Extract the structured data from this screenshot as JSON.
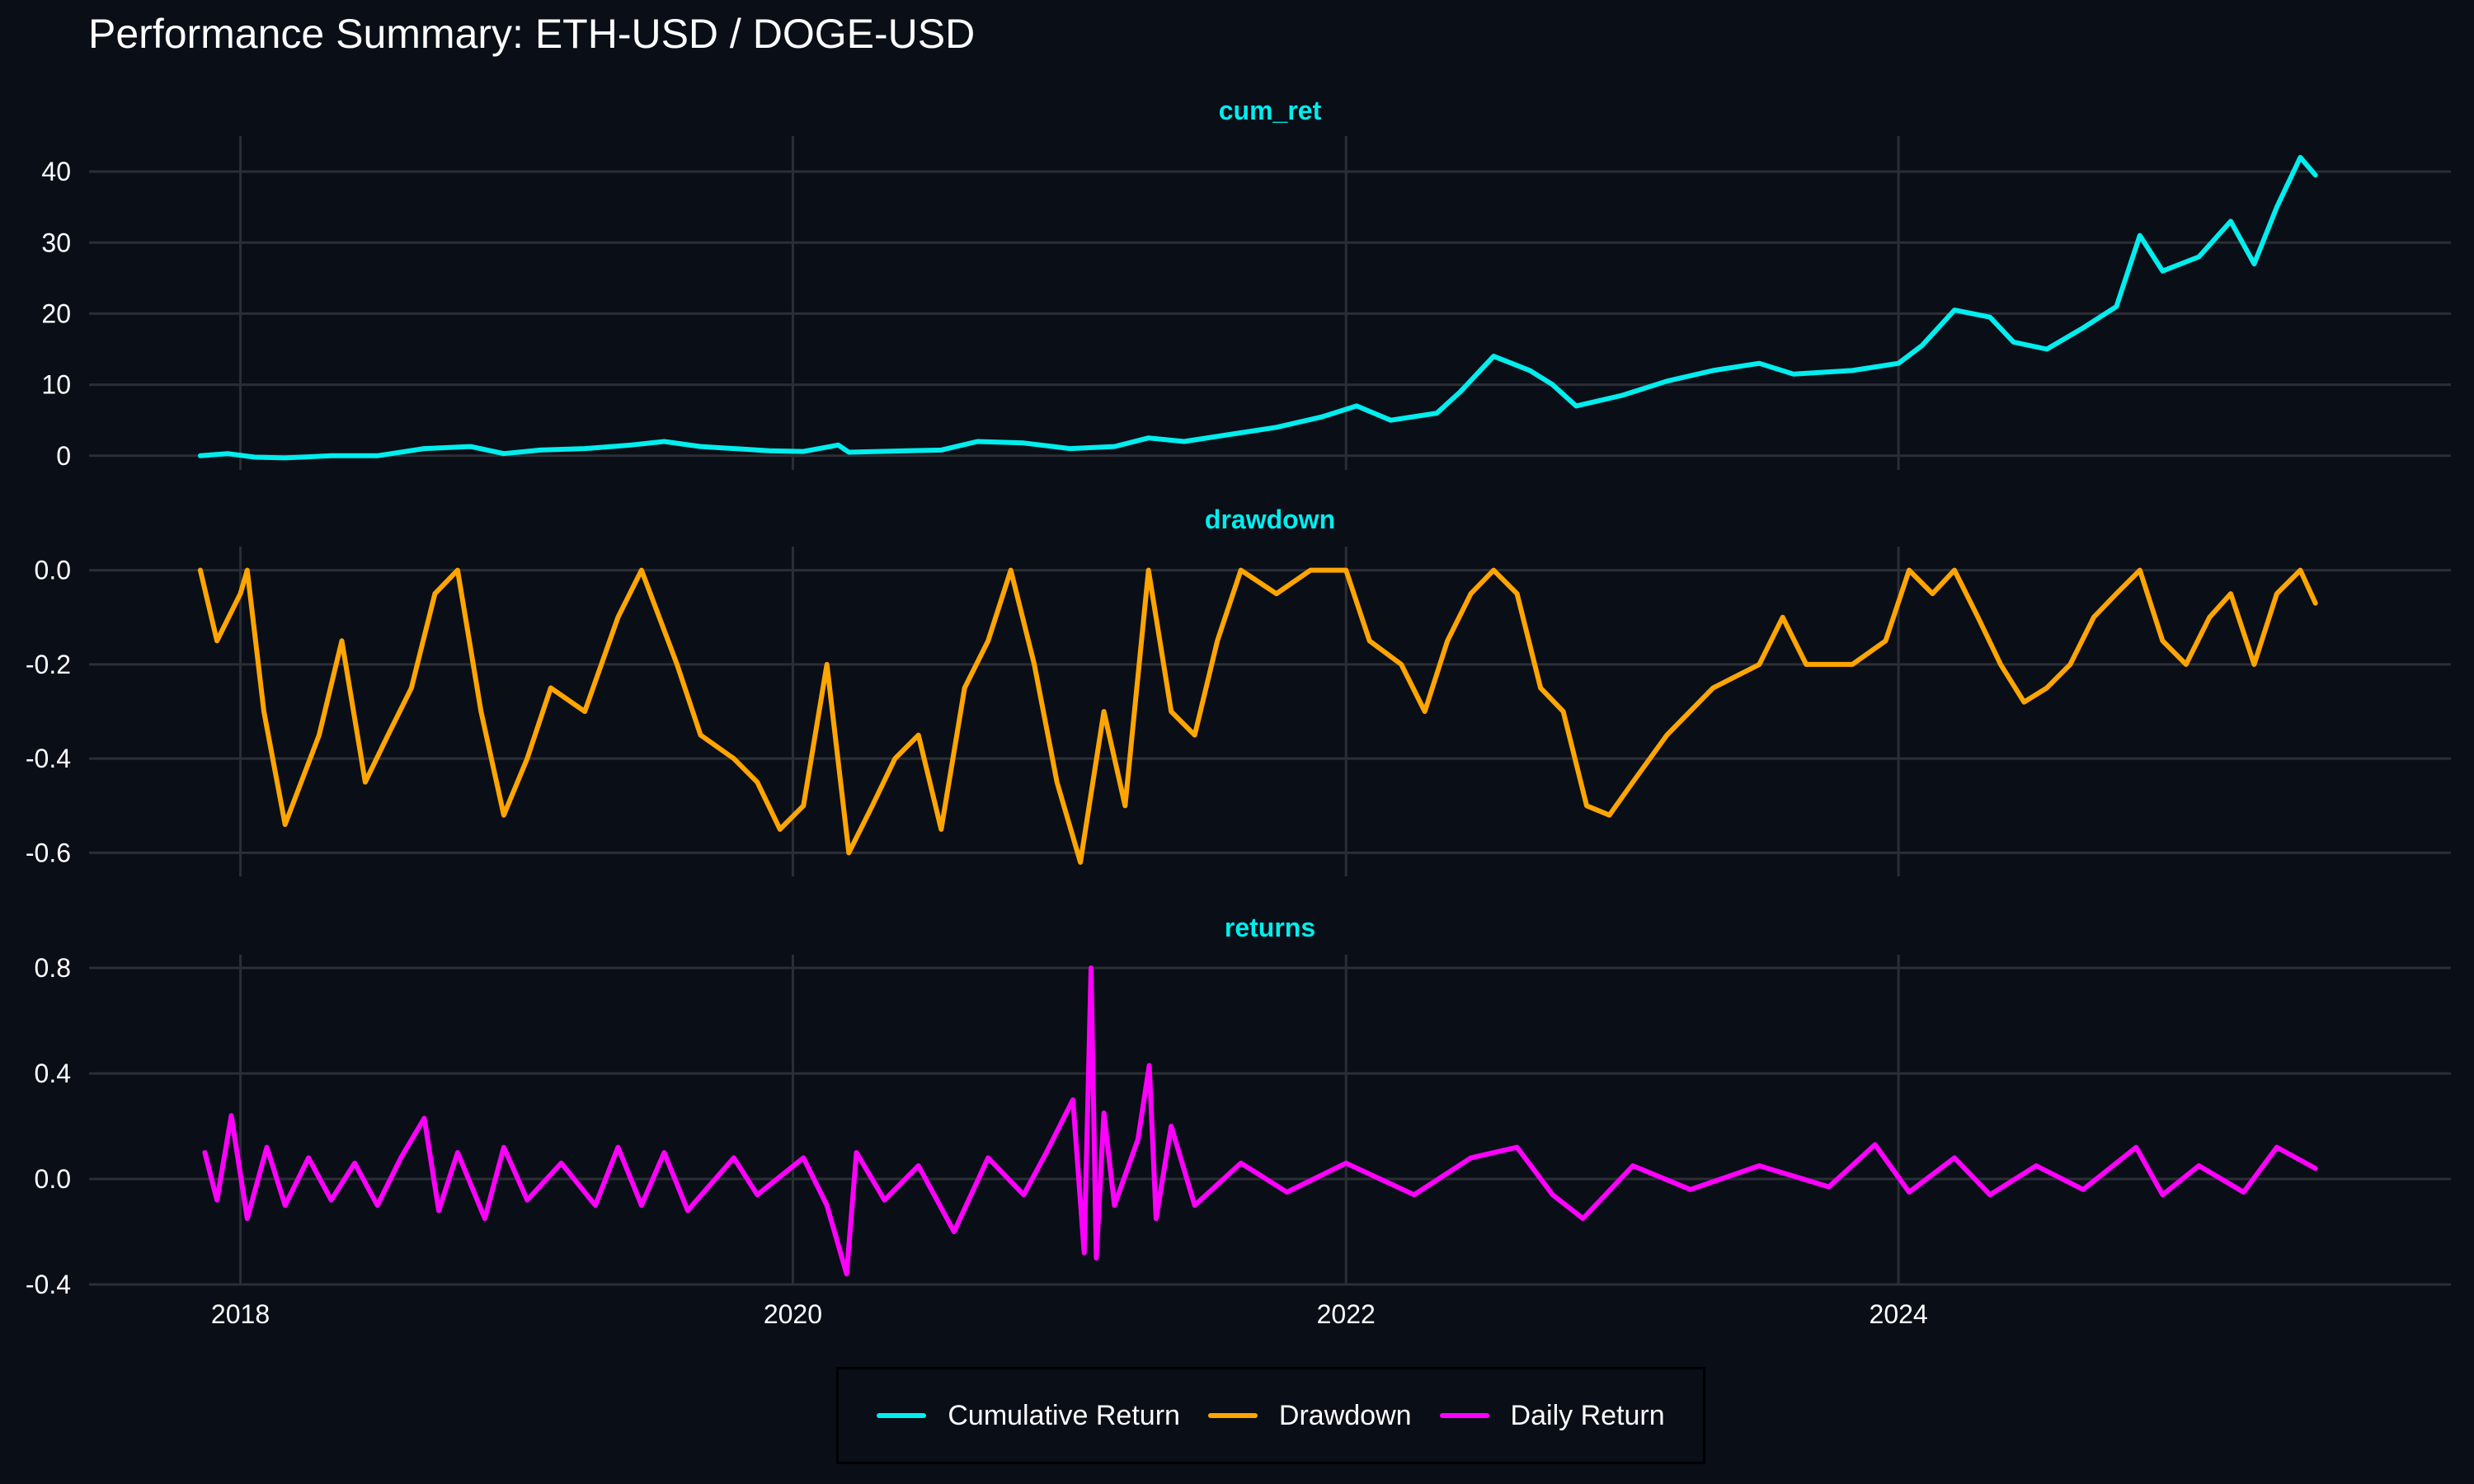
{
  "title": "Performance Summary: ETH-USD / DOGE-USD",
  "legend": [
    {
      "label": "Cumulative Return",
      "color": "#00eeee"
    },
    {
      "label": "Drawdown",
      "color": "#ffa500"
    },
    {
      "label": "Daily Return",
      "color": "#ff00ff"
    }
  ],
  "chart_data": {
    "type": "line",
    "x_axis": {
      "ticks": [
        "2018-01-01",
        "2020-01-01",
        "2022-01-01",
        "2024-01-01"
      ],
      "tick_labels": [
        "2018",
        "2020",
        "2022",
        "2024"
      ],
      "range": [
        "2017-06-15",
        "2025-12-31"
      ]
    },
    "grid": true,
    "legend_position": "bottom",
    "panels": [
      {
        "facet": "cum_ret",
        "color": "#00eeee",
        "ylim": [
          -2,
          45
        ],
        "yticks": [
          0,
          10,
          20,
          30,
          40
        ],
        "ytick_labels": [
          "0",
          "10",
          "20",
          "30",
          "40"
        ],
        "series": [
          [
            "2017-11-09",
            0.0
          ],
          [
            "2017-12-15",
            0.3
          ],
          [
            "2018-01-20",
            -0.2
          ],
          [
            "2018-03-01",
            -0.3
          ],
          [
            "2018-05-01",
            0.0
          ],
          [
            "2018-07-01",
            0.0
          ],
          [
            "2018-09-01",
            1.0
          ],
          [
            "2018-11-01",
            1.3
          ],
          [
            "2018-12-15",
            0.3
          ],
          [
            "2019-02-01",
            0.8
          ],
          [
            "2019-04-01",
            1.0
          ],
          [
            "2019-06-01",
            1.5
          ],
          [
            "2019-07-15",
            2.0
          ],
          [
            "2019-09-01",
            1.3
          ],
          [
            "2019-12-01",
            0.7
          ],
          [
            "2020-01-15",
            0.6
          ],
          [
            "2020-03-01",
            1.5
          ],
          [
            "2020-03-15",
            0.5
          ],
          [
            "2020-06-01",
            0.7
          ],
          [
            "2020-07-15",
            0.8
          ],
          [
            "2020-09-01",
            2.0
          ],
          [
            "2020-11-01",
            1.8
          ],
          [
            "2021-01-01",
            1.0
          ],
          [
            "2021-03-01",
            1.3
          ],
          [
            "2021-04-15",
            2.5
          ],
          [
            "2021-06-01",
            2.0
          ],
          [
            "2021-08-01",
            3.0
          ],
          [
            "2021-10-01",
            4.0
          ],
          [
            "2021-12-01",
            5.5
          ],
          [
            "2022-01-15",
            7.0
          ],
          [
            "2022-03-01",
            5.0
          ],
          [
            "2022-05-01",
            6.0
          ],
          [
            "2022-06-01",
            9.0
          ],
          [
            "2022-07-15",
            14.0
          ],
          [
            "2022-09-01",
            12.0
          ],
          [
            "2022-10-01",
            10.0
          ],
          [
            "2022-11-01",
            7.0
          ],
          [
            "2023-01-01",
            8.5
          ],
          [
            "2023-03-01",
            10.5
          ],
          [
            "2023-05-01",
            12.0
          ],
          [
            "2023-07-01",
            13.0
          ],
          [
            "2023-08-15",
            11.5
          ],
          [
            "2023-11-01",
            12.0
          ],
          [
            "2024-01-01",
            13.0
          ],
          [
            "2024-02-01",
            15.5
          ],
          [
            "2024-03-15",
            20.5
          ],
          [
            "2024-05-01",
            19.5
          ],
          [
            "2024-06-01",
            16.0
          ],
          [
            "2024-07-15",
            15.0
          ],
          [
            "2024-09-01",
            18.0
          ],
          [
            "2024-10-15",
            21.0
          ],
          [
            "2024-11-15",
            31.0
          ],
          [
            "2024-12-15",
            26.0
          ],
          [
            "2025-02-01",
            28.0
          ],
          [
            "2025-03-15",
            33.0
          ],
          [
            "2025-04-15",
            27.0
          ],
          [
            "2025-05-15",
            35.0
          ],
          [
            "2025-06-15",
            42.0
          ],
          [
            "2025-07-05",
            39.5
          ]
        ]
      },
      {
        "facet": "drawdown",
        "color": "#ffa500",
        "ylim": [
          -0.65,
          0.05
        ],
        "yticks": [
          0.0,
          -0.2,
          -0.4,
          -0.6
        ],
        "ytick_labels": [
          "0.0",
          "-0.2",
          "-0.4",
          "-0.6"
        ],
        "series": [
          [
            "2017-11-09",
            0.0
          ],
          [
            "2017-12-01",
            -0.15
          ],
          [
            "2018-01-01",
            -0.05
          ],
          [
            "2018-01-10",
            0.0
          ],
          [
            "2018-02-01",
            -0.3
          ],
          [
            "2018-03-01",
            -0.54
          ],
          [
            "2018-04-15",
            -0.35
          ],
          [
            "2018-05-15",
            -0.15
          ],
          [
            "2018-06-15",
            -0.45
          ],
          [
            "2018-07-15",
            -0.35
          ],
          [
            "2018-08-15",
            -0.25
          ],
          [
            "2018-09-15",
            -0.05
          ],
          [
            "2018-10-15",
            0.0
          ],
          [
            "2018-11-15",
            -0.3
          ],
          [
            "2018-12-15",
            -0.52
          ],
          [
            "2019-01-15",
            -0.4
          ],
          [
            "2019-02-15",
            -0.25
          ],
          [
            "2019-04-01",
            -0.3
          ],
          [
            "2019-05-15",
            -0.1
          ],
          [
            "2019-06-15",
            0.0
          ],
          [
            "2019-08-01",
            -0.2
          ],
          [
            "2019-09-01",
            -0.35
          ],
          [
            "2019-10-15",
            -0.4
          ],
          [
            "2019-11-15",
            -0.45
          ],
          [
            "2019-12-15",
            -0.55
          ],
          [
            "2020-01-15",
            -0.5
          ],
          [
            "2020-02-15",
            -0.2
          ],
          [
            "2020-03-15",
            -0.6
          ],
          [
            "2020-04-15",
            -0.5
          ],
          [
            "2020-05-15",
            -0.4
          ],
          [
            "2020-06-15",
            -0.35
          ],
          [
            "2020-07-15",
            -0.55
          ],
          [
            "2020-08-15",
            -0.25
          ],
          [
            "2020-09-15",
            -0.15
          ],
          [
            "2020-10-15",
            0.0
          ],
          [
            "2020-11-15",
            -0.2
          ],
          [
            "2020-12-15",
            -0.45
          ],
          [
            "2021-01-15",
            -0.62
          ],
          [
            "2021-02-15",
            -0.3
          ],
          [
            "2021-03-15",
            -0.5
          ],
          [
            "2021-04-15",
            0.0
          ],
          [
            "2021-05-15",
            -0.3
          ],
          [
            "2021-06-15",
            -0.35
          ],
          [
            "2021-07-15",
            -0.15
          ],
          [
            "2021-08-15",
            0.0
          ],
          [
            "2021-10-01",
            -0.05
          ],
          [
            "2021-11-15",
            0.0
          ],
          [
            "2022-01-01",
            0.0
          ],
          [
            "2022-02-01",
            -0.15
          ],
          [
            "2022-03-15",
            -0.2
          ],
          [
            "2022-04-15",
            -0.3
          ],
          [
            "2022-05-15",
            -0.15
          ],
          [
            "2022-06-15",
            -0.05
          ],
          [
            "2022-07-15",
            0.0
          ],
          [
            "2022-08-15",
            -0.05
          ],
          [
            "2022-09-15",
            -0.25
          ],
          [
            "2022-10-15",
            -0.3
          ],
          [
            "2022-11-15",
            -0.5
          ],
          [
            "2022-12-15",
            -0.52
          ],
          [
            "2023-01-15",
            -0.45
          ],
          [
            "2023-03-01",
            -0.35
          ],
          [
            "2023-05-01",
            -0.25
          ],
          [
            "2023-07-01",
            -0.2
          ],
          [
            "2023-08-01",
            -0.1
          ],
          [
            "2023-09-01",
            -0.2
          ],
          [
            "2023-11-01",
            -0.2
          ],
          [
            "2023-12-15",
            -0.15
          ],
          [
            "2024-01-15",
            0.0
          ],
          [
            "2024-02-15",
            -0.05
          ],
          [
            "2024-03-15",
            0.0
          ],
          [
            "2024-04-15",
            -0.1
          ],
          [
            "2024-05-15",
            -0.2
          ],
          [
            "2024-06-15",
            -0.28
          ],
          [
            "2024-07-15",
            -0.25
          ],
          [
            "2024-08-15",
            -0.2
          ],
          [
            "2024-09-15",
            -0.1
          ],
          [
            "2024-10-15",
            -0.05
          ],
          [
            "2024-11-15",
            0.0
          ],
          [
            "2024-12-15",
            -0.15
          ],
          [
            "2025-01-15",
            -0.2
          ],
          [
            "2025-02-15",
            -0.1
          ],
          [
            "2025-03-15",
            -0.05
          ],
          [
            "2025-04-15",
            -0.2
          ],
          [
            "2025-05-15",
            -0.05
          ],
          [
            "2025-06-15",
            0.0
          ],
          [
            "2025-07-05",
            -0.07
          ]
        ]
      },
      {
        "facet": "returns",
        "color": "#ff00ff",
        "ylim": [
          -0.4,
          0.85
        ],
        "yticks": [
          0.8,
          0.4,
          0.0,
          -0.4
        ],
        "ytick_labels": [
          "0.8",
          "0.4",
          "0.0",
          "-0.4"
        ],
        "series": [
          [
            "2017-11-15",
            0.1
          ],
          [
            "2017-12-01",
            -0.08
          ],
          [
            "2017-12-20",
            0.24
          ],
          [
            "2018-01-10",
            -0.15
          ],
          [
            "2018-02-05",
            0.12
          ],
          [
            "2018-03-01",
            -0.1
          ],
          [
            "2018-04-01",
            0.08
          ],
          [
            "2018-05-01",
            -0.08
          ],
          [
            "2018-06-01",
            0.06
          ],
          [
            "2018-07-01",
            -0.1
          ],
          [
            "2018-08-01",
            0.08
          ],
          [
            "2018-09-01",
            0.23
          ],
          [
            "2018-09-20",
            -0.12
          ],
          [
            "2018-10-15",
            0.1
          ],
          [
            "2018-11-20",
            -0.15
          ],
          [
            "2018-12-15",
            0.12
          ],
          [
            "2019-01-15",
            -0.08
          ],
          [
            "2019-03-01",
            0.06
          ],
          [
            "2019-04-15",
            -0.1
          ],
          [
            "2019-05-15",
            0.12
          ],
          [
            "2019-06-15",
            -0.1
          ],
          [
            "2019-07-15",
            0.1
          ],
          [
            "2019-08-15",
            -0.12
          ],
          [
            "2019-10-15",
            0.08
          ],
          [
            "2019-11-15",
            -0.06
          ],
          [
            "2020-01-15",
            0.08
          ],
          [
            "2020-02-15",
            -0.1
          ],
          [
            "2020-03-12",
            -0.36
          ],
          [
            "2020-03-25",
            0.1
          ],
          [
            "2020-05-01",
            -0.08
          ],
          [
            "2020-06-15",
            0.05
          ],
          [
            "2020-08-01",
            -0.2
          ],
          [
            "2020-09-15",
            0.08
          ],
          [
            "2020-11-01",
            -0.06
          ],
          [
            "2020-12-01",
            0.1
          ],
          [
            "2021-01-05",
            0.3
          ],
          [
            "2021-01-20",
            -0.28
          ],
          [
            "2021-01-29",
            0.8
          ],
          [
            "2021-02-05",
            -0.3
          ],
          [
            "2021-02-15",
            0.25
          ],
          [
            "2021-03-01",
            -0.1
          ],
          [
            "2021-04-01",
            0.15
          ],
          [
            "2021-04-16",
            0.43
          ],
          [
            "2021-04-25",
            -0.15
          ],
          [
            "2021-05-15",
            0.2
          ],
          [
            "2021-06-15",
            -0.1
          ],
          [
            "2021-08-15",
            0.06
          ],
          [
            "2021-10-15",
            -0.05
          ],
          [
            "2022-01-01",
            0.06
          ],
          [
            "2022-04-01",
            -0.06
          ],
          [
            "2022-06-15",
            0.08
          ],
          [
            "2022-08-15",
            0.12
          ],
          [
            "2022-10-01",
            -0.06
          ],
          [
            "2022-11-10",
            -0.15
          ],
          [
            "2023-01-15",
            0.05
          ],
          [
            "2023-04-01",
            -0.04
          ],
          [
            "2023-07-01",
            0.05
          ],
          [
            "2023-10-01",
            -0.03
          ],
          [
            "2023-12-01",
            0.13
          ],
          [
            "2024-01-15",
            -0.05
          ],
          [
            "2024-03-15",
            0.08
          ],
          [
            "2024-05-01",
            -0.06
          ],
          [
            "2024-07-01",
            0.05
          ],
          [
            "2024-09-01",
            -0.04
          ],
          [
            "2024-11-10",
            0.12
          ],
          [
            "2024-12-15",
            -0.06
          ],
          [
            "2025-02-01",
            0.05
          ],
          [
            "2025-04-01",
            -0.05
          ],
          [
            "2025-05-15",
            0.12
          ],
          [
            "2025-07-05",
            0.04
          ]
        ]
      }
    ]
  }
}
